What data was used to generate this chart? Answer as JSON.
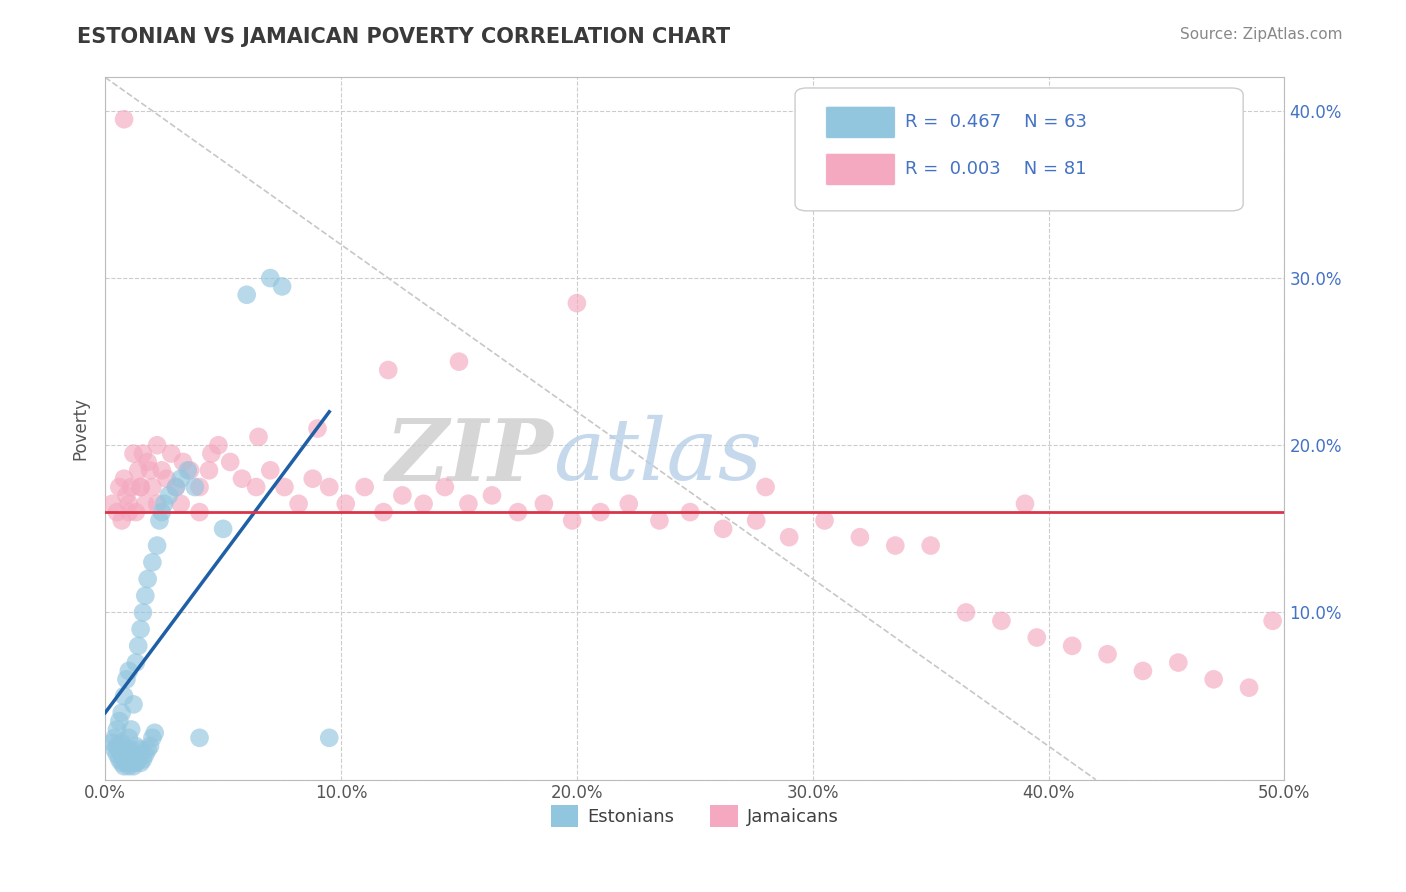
{
  "title": "ESTONIAN VS JAMAICAN POVERTY CORRELATION CHART",
  "source": "Source: ZipAtlas.com",
  "ylabel": "Poverty",
  "xmin": 0.0,
  "xmax": 0.5,
  "ymin": 0.0,
  "ymax": 0.42,
  "yticks": [
    0.0,
    0.1,
    0.2,
    0.3,
    0.4
  ],
  "ytick_labels_right": [
    "",
    "10.0%",
    "20.0%",
    "30.0%",
    "40.0%"
  ],
  "xticks": [
    0.0,
    0.1,
    0.2,
    0.3,
    0.4,
    0.5
  ],
  "xtick_labels": [
    "0.0%",
    "10.0%",
    "20.0%",
    "30.0%",
    "40.0%",
    "50.0%"
  ],
  "legend_r1": "R = 0.467",
  "legend_n1": "N = 63",
  "legend_r2": "R = 0.003",
  "legend_n2": "N = 81",
  "legend_label1": "Estonians",
  "legend_label2": "Jamaicans",
  "blue_color": "#92c5de",
  "pink_color": "#f4a9c0",
  "blue_line_color": "#1f5fa6",
  "pink_line_color": "#d9344a",
  "title_color": "#3a3a3a",
  "background": "#ffffff",
  "grid_color": "#cccccc",
  "zip_color": "#c0c0c0",
  "atlas_color": "#aac4dd",
  "blue_x": [
    0.003,
    0.004,
    0.004,
    0.005,
    0.005,
    0.005,
    0.006,
    0.006,
    0.006,
    0.007,
    0.007,
    0.007,
    0.007,
    0.008,
    0.008,
    0.008,
    0.008,
    0.009,
    0.009,
    0.009,
    0.01,
    0.01,
    0.01,
    0.01,
    0.011,
    0.011,
    0.011,
    0.012,
    0.012,
    0.012,
    0.013,
    0.013,
    0.013,
    0.014,
    0.014,
    0.015,
    0.015,
    0.015,
    0.016,
    0.016,
    0.017,
    0.017,
    0.018,
    0.018,
    0.019,
    0.02,
    0.02,
    0.021,
    0.022,
    0.023,
    0.024,
    0.025,
    0.027,
    0.03,
    0.032,
    0.035,
    0.038,
    0.04,
    0.05,
    0.06,
    0.07,
    0.075,
    0.095
  ],
  "blue_y": [
    0.022,
    0.018,
    0.025,
    0.015,
    0.02,
    0.03,
    0.012,
    0.018,
    0.035,
    0.01,
    0.015,
    0.022,
    0.04,
    0.008,
    0.013,
    0.02,
    0.05,
    0.01,
    0.018,
    0.06,
    0.008,
    0.012,
    0.025,
    0.065,
    0.01,
    0.018,
    0.03,
    0.008,
    0.015,
    0.045,
    0.01,
    0.02,
    0.07,
    0.012,
    0.08,
    0.01,
    0.018,
    0.09,
    0.012,
    0.1,
    0.015,
    0.11,
    0.018,
    0.12,
    0.02,
    0.025,
    0.13,
    0.028,
    0.14,
    0.155,
    0.16,
    0.165,
    0.17,
    0.175,
    0.18,
    0.185,
    0.175,
    0.025,
    0.15,
    0.29,
    0.3,
    0.295,
    0.025
  ],
  "pink_x": [
    0.003,
    0.005,
    0.006,
    0.007,
    0.008,
    0.009,
    0.01,
    0.011,
    0.012,
    0.013,
    0.014,
    0.015,
    0.016,
    0.017,
    0.018,
    0.019,
    0.02,
    0.022,
    0.024,
    0.026,
    0.028,
    0.03,
    0.033,
    0.036,
    0.04,
    0.044,
    0.048,
    0.053,
    0.058,
    0.064,
    0.07,
    0.076,
    0.082,
    0.088,
    0.095,
    0.102,
    0.11,
    0.118,
    0.126,
    0.135,
    0.144,
    0.154,
    0.164,
    0.175,
    0.186,
    0.198,
    0.21,
    0.222,
    0.235,
    0.248,
    0.262,
    0.276,
    0.29,
    0.305,
    0.32,
    0.335,
    0.35,
    0.365,
    0.38,
    0.395,
    0.41,
    0.425,
    0.44,
    0.455,
    0.47,
    0.485,
    0.495,
    0.39,
    0.28,
    0.2,
    0.15,
    0.12,
    0.09,
    0.065,
    0.045,
    0.032,
    0.022,
    0.015,
    0.01,
    0.008,
    0.04
  ],
  "pink_y": [
    0.165,
    0.16,
    0.175,
    0.155,
    0.18,
    0.17,
    0.165,
    0.175,
    0.195,
    0.16,
    0.185,
    0.175,
    0.195,
    0.165,
    0.19,
    0.185,
    0.175,
    0.2,
    0.185,
    0.18,
    0.195,
    0.175,
    0.19,
    0.185,
    0.175,
    0.185,
    0.2,
    0.19,
    0.18,
    0.175,
    0.185,
    0.175,
    0.165,
    0.18,
    0.175,
    0.165,
    0.175,
    0.16,
    0.17,
    0.165,
    0.175,
    0.165,
    0.17,
    0.16,
    0.165,
    0.155,
    0.16,
    0.165,
    0.155,
    0.16,
    0.15,
    0.155,
    0.145,
    0.155,
    0.145,
    0.14,
    0.14,
    0.1,
    0.095,
    0.085,
    0.08,
    0.075,
    0.065,
    0.07,
    0.06,
    0.055,
    0.095,
    0.165,
    0.175,
    0.285,
    0.25,
    0.245,
    0.21,
    0.205,
    0.195,
    0.165,
    0.165,
    0.175,
    0.16,
    0.395,
    0.16
  ],
  "blue_line_x0": 0.0,
  "blue_line_y0": 0.04,
  "blue_line_x1": 0.095,
  "blue_line_y1": 0.22,
  "pink_line_y": 0.16,
  "diag_line_x0": 0.0,
  "diag_line_y0": 0.42,
  "diag_line_x1": 0.42,
  "diag_line_y1": 0.0
}
